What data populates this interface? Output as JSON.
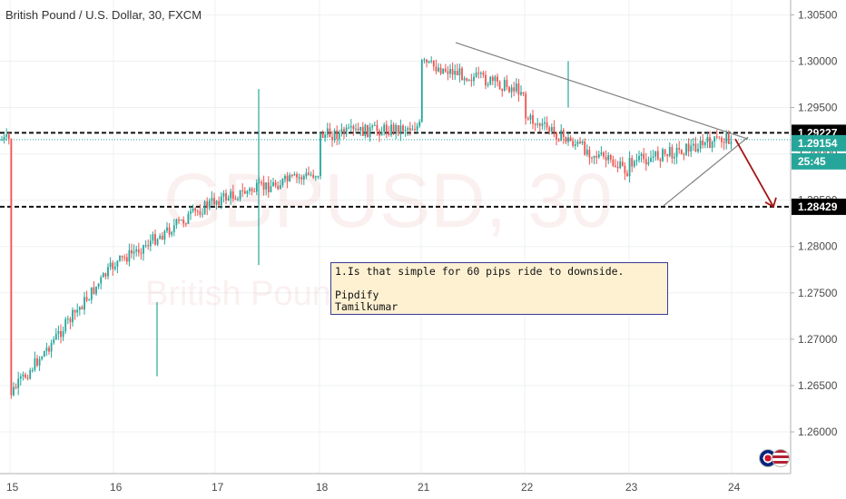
{
  "header": {
    "title": "British Pound / U.S. Dollar, 30, FXCM"
  },
  "watermark": {
    "symbol": "GBPUSD, 30",
    "name": "British Pound / U.S. Dollar"
  },
  "annotation": {
    "lines": [
      "1.Is that simple for 60 pips ride to downside.",
      "",
      "Pipdify",
      "Tamilkumar"
    ]
  },
  "price_tags": {
    "resistance": "1.29227",
    "current": "1.29154",
    "countdown": "25:45",
    "support": "1.28429"
  },
  "colors": {
    "bull": "#26a69a",
    "bear": "#ef5350",
    "current_tag": "#26a69a",
    "level_tag": "#000000",
    "arrow": "#a31515",
    "trendline": "#808080"
  },
  "chart_data": {
    "type": "candlestick",
    "title": "British Pound / U.S. Dollar, 30, FXCM",
    "x_ticks": [
      "15",
      "16",
      "17",
      "18",
      "21",
      "22",
      "23",
      "24"
    ],
    "y_ticks": [
      "1.30500",
      "1.30000",
      "1.29500",
      "1.29000",
      "1.28500",
      "1.28000",
      "1.27500",
      "1.27000",
      "1.26500",
      "1.26000"
    ],
    "ylim": [
      1.2555,
      1.3066
    ],
    "levels": [
      {
        "value": 1.29227,
        "style": "dashed"
      },
      {
        "value": 1.28429,
        "style": "dashed"
      },
      {
        "value": 1.29154,
        "style": "dotted"
      }
    ],
    "trendlines": [
      {
        "from": [
          "21",
          1.302
        ],
        "to": [
          "24",
          1.2916
        ]
      },
      {
        "from": [
          "23",
          1.2844
        ],
        "to": [
          "24",
          1.2918
        ]
      }
    ],
    "arrow": {
      "from": [
        "24",
        1.2916
      ],
      "to": [
        "24+",
        1.2843
      ]
    },
    "path": [
      [
        "15",
        1.261
      ],
      [
        "15",
        1.2625
      ],
      [
        "15",
        1.266
      ],
      [
        "15",
        1.264
      ],
      [
        "16",
        1.278
      ],
      [
        "16",
        1.279
      ],
      [
        "16",
        1.276
      ],
      [
        "16",
        1.275
      ],
      [
        "16",
        1.27
      ],
      [
        "16",
        1.278
      ],
      [
        "17",
        1.285
      ],
      [
        "17",
        1.283
      ],
      [
        "17",
        1.28
      ],
      [
        "17",
        1.276
      ],
      [
        "17",
        1.29
      ],
      [
        "17",
        1.287
      ],
      [
        "17",
        1.283
      ],
      [
        "17",
        1.285
      ],
      [
        "18",
        1.288
      ],
      [
        "18",
        1.285
      ],
      [
        "18",
        1.286
      ],
      [
        "18",
        1.288
      ],
      [
        "18",
        1.2905
      ],
      [
        "18",
        1.292
      ],
      [
        "21",
        1.293
      ],
      [
        "21",
        1.292
      ],
      [
        "21",
        1.299
      ],
      [
        "21",
        1.2998
      ],
      [
        "22",
        1.2968
      ],
      [
        "22",
        1.2975
      ],
      [
        "22",
        1.2988
      ],
      [
        "22",
        1.297
      ],
      [
        "22",
        1.295
      ],
      [
        "22",
        1.294
      ],
      [
        "22",
        1.296
      ],
      [
        "22",
        1.294
      ],
      [
        "23",
        1.288
      ],
      [
        "23",
        1.286
      ],
      [
        "23",
        1.2844
      ],
      [
        "23",
        1.286
      ],
      [
        "23",
        1.287
      ],
      [
        "23",
        1.289
      ],
      [
        "24",
        1.2918
      ],
      [
        "24",
        1.2915
      ]
    ],
    "wick_spikes": [
      [
        [
          "17",
          1.297
        ],
        [
          "17",
          1.278
        ]
      ],
      [
        [
          "22",
          1.3
        ],
        [
          "22",
          1.295
        ]
      ],
      [
        [
          "16",
          1.266
        ],
        [
          "16",
          1.274
        ]
      ]
    ]
  }
}
